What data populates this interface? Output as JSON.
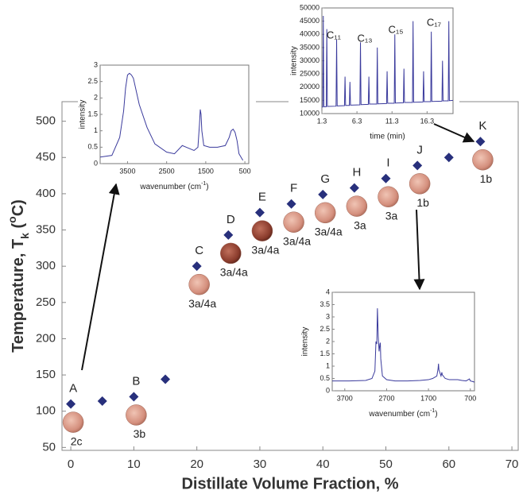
{
  "chart_data": [
    {
      "type": "scatter",
      "x": [
        0,
        5,
        10,
        15,
        20,
        25,
        30,
        35,
        40,
        45,
        50,
        55,
        60,
        65
      ],
      "values": [
        110,
        114,
        120,
        144,
        300,
        343,
        374,
        386,
        399,
        408,
        421,
        439,
        450,
        472
      ],
      "color": "#28307c",
      "point_labels": [
        "A",
        null,
        "B",
        null,
        "C",
        "D",
        "E",
        "F",
        "G",
        "H",
        "I",
        "J",
        null,
        "K"
      ],
      "sample_labels": [
        "2c",
        null,
        "3b",
        null,
        "3a/4a",
        "3a/4a",
        "3a/4a",
        "3a/4a",
        "3a/4a",
        "3a",
        "3a",
        "1b",
        null,
        "1b"
      ],
      "xlim": [
        -1.4,
        71
      ],
      "ylim": [
        46,
        527
      ],
      "xticks": [
        0,
        10,
        20,
        30,
        40,
        50,
        60,
        70
      ],
      "yticks": [
        50,
        100,
        150,
        200,
        250,
        300,
        350,
        400,
        450,
        500
      ],
      "xlabel": "Distillate Volume Fraction, %",
      "ylabel": [
        {
          "text": "Temperature, T"
        },
        {
          "sub": "k"
        },
        {
          "text": " ("
        },
        {
          "sup": "o"
        },
        {
          "text": "C)"
        }
      ]
    },
    {
      "type": "line",
      "x": [
        4200,
        3900,
        3700,
        3600,
        3550,
        3500,
        3450,
        3400,
        3350,
        3200,
        3000,
        2800,
        2500,
        2300,
        2100,
        2000,
        1800,
        1700,
        1660,
        1640,
        1620,
        1600,
        1550,
        1400,
        1200,
        1000,
        900,
        850,
        800,
        750,
        700,
        650,
        550
      ],
      "values": [
        0.2,
        0.25,
        0.8,
        1.6,
        2.3,
        2.7,
        2.75,
        2.7,
        2.6,
        1.8,
        1.1,
        0.6,
        0.35,
        0.3,
        0.55,
        0.5,
        0.4,
        0.5,
        1.2,
        1.65,
        1.5,
        1.0,
        0.55,
        0.5,
        0.5,
        0.55,
        0.8,
        1.0,
        1.05,
        0.95,
        0.7,
        0.3,
        0.1
      ],
      "color": "#3a3a9c",
      "xlim": [
        4200,
        400
      ],
      "ylim": [
        0,
        3
      ],
      "xticks": [
        3500,
        2500,
        1500,
        500
      ],
      "yticks": [
        0,
        0.5,
        1,
        1.5,
        2,
        2.5,
        3
      ],
      "xlabel": [
        {
          "text": "wavenumber (cm"
        },
        {
          "sup": "-1"
        },
        {
          "text": ")"
        }
      ],
      "ylabel": "intensity"
    },
    {
      "type": "line",
      "x": [
        1.3,
        1.42,
        1.5,
        1.58,
        1.92,
        2.0,
        2.08,
        3.32,
        3.4,
        3.48,
        4.52,
        4.6,
        4.68,
        5.22,
        5.3,
        5.38,
        6.72,
        6.8,
        6.88,
        7.92,
        8.0,
        8.08,
        9.12,
        9.2,
        9.28,
        10.52,
        10.6,
        10.68,
        11.62,
        11.7,
        11.78,
        12.92,
        13.0,
        13.08,
        14.22,
        14.3,
        14.38,
        15.72,
        15.8,
        15.88,
        16.82,
        16.9,
        16.98,
        18.42,
        18.5,
        18.58,
        19.32,
        19.4,
        19.48,
        20
      ],
      "values": [
        12500,
        12500,
        47000,
        12600,
        12600,
        42000,
        12700,
        12800,
        38000,
        12900,
        13000,
        24000,
        13100,
        13100,
        22000,
        13200,
        13300,
        37000,
        13400,
        13500,
        24000,
        13600,
        13600,
        35000,
        13700,
        13800,
        26000,
        13900,
        13900,
        40000,
        14000,
        14100,
        27000,
        14200,
        14200,
        45000,
        14300,
        14400,
        26000,
        14500,
        14500,
        41000,
        14600,
        14700,
        30000,
        14800,
        14800,
        45000,
        14900,
        15000
      ],
      "color": "#3a3a9c",
      "xlim": [
        1.3,
        20
      ],
      "ylim": [
        10000,
        50000
      ],
      "xticks": [
        1.3,
        6.3,
        11.3,
        16.3
      ],
      "yticks": [
        10000,
        15000,
        20000,
        25000,
        30000,
        35000,
        40000,
        45000,
        50000
      ],
      "xlabel": "time (min)",
      "ylabel": "intensity",
      "annotations": [
        "C₁₁",
        "C₁₃",
        "C₁₅",
        "C₁₇"
      ]
    },
    {
      "type": "line",
      "x": [
        4000,
        3600,
        3200,
        3050,
        2980,
        2955,
        2935,
        2920,
        2900,
        2880,
        2860,
        2850,
        2840,
        2800,
        2700,
        2500,
        2200,
        1900,
        1700,
        1600,
        1500,
        1470,
        1460,
        1450,
        1400,
        1380,
        1370,
        1300,
        1200,
        1000,
        900,
        800,
        720,
        700,
        650,
        600
      ],
      "values": [
        0.4,
        0.4,
        0.42,
        0.5,
        0.8,
        2.0,
        1.9,
        3.35,
        2.2,
        1.6,
        1.9,
        1.95,
        1.3,
        0.6,
        0.45,
        0.4,
        0.4,
        0.42,
        0.45,
        0.5,
        0.6,
        0.9,
        1.1,
        0.85,
        0.6,
        0.75,
        0.65,
        0.5,
        0.45,
        0.45,
        0.42,
        0.4,
        0.48,
        0.4,
        0.38,
        0.35
      ],
      "color": "#3a3a9c",
      "xlim": [
        4000,
        600
      ],
      "ylim": [
        0,
        4
      ],
      "xticks": [
        3700,
        2700,
        1700,
        700
      ],
      "yticks": [
        0,
        0.5,
        1,
        1.5,
        2,
        2.5,
        3,
        3.5,
        4
      ],
      "xlabel": [
        {
          "text": "wavenumber (cm"
        },
        {
          "sup": "-1"
        },
        {
          "text": ")"
        }
      ],
      "ylabel": "intensity"
    }
  ]
}
